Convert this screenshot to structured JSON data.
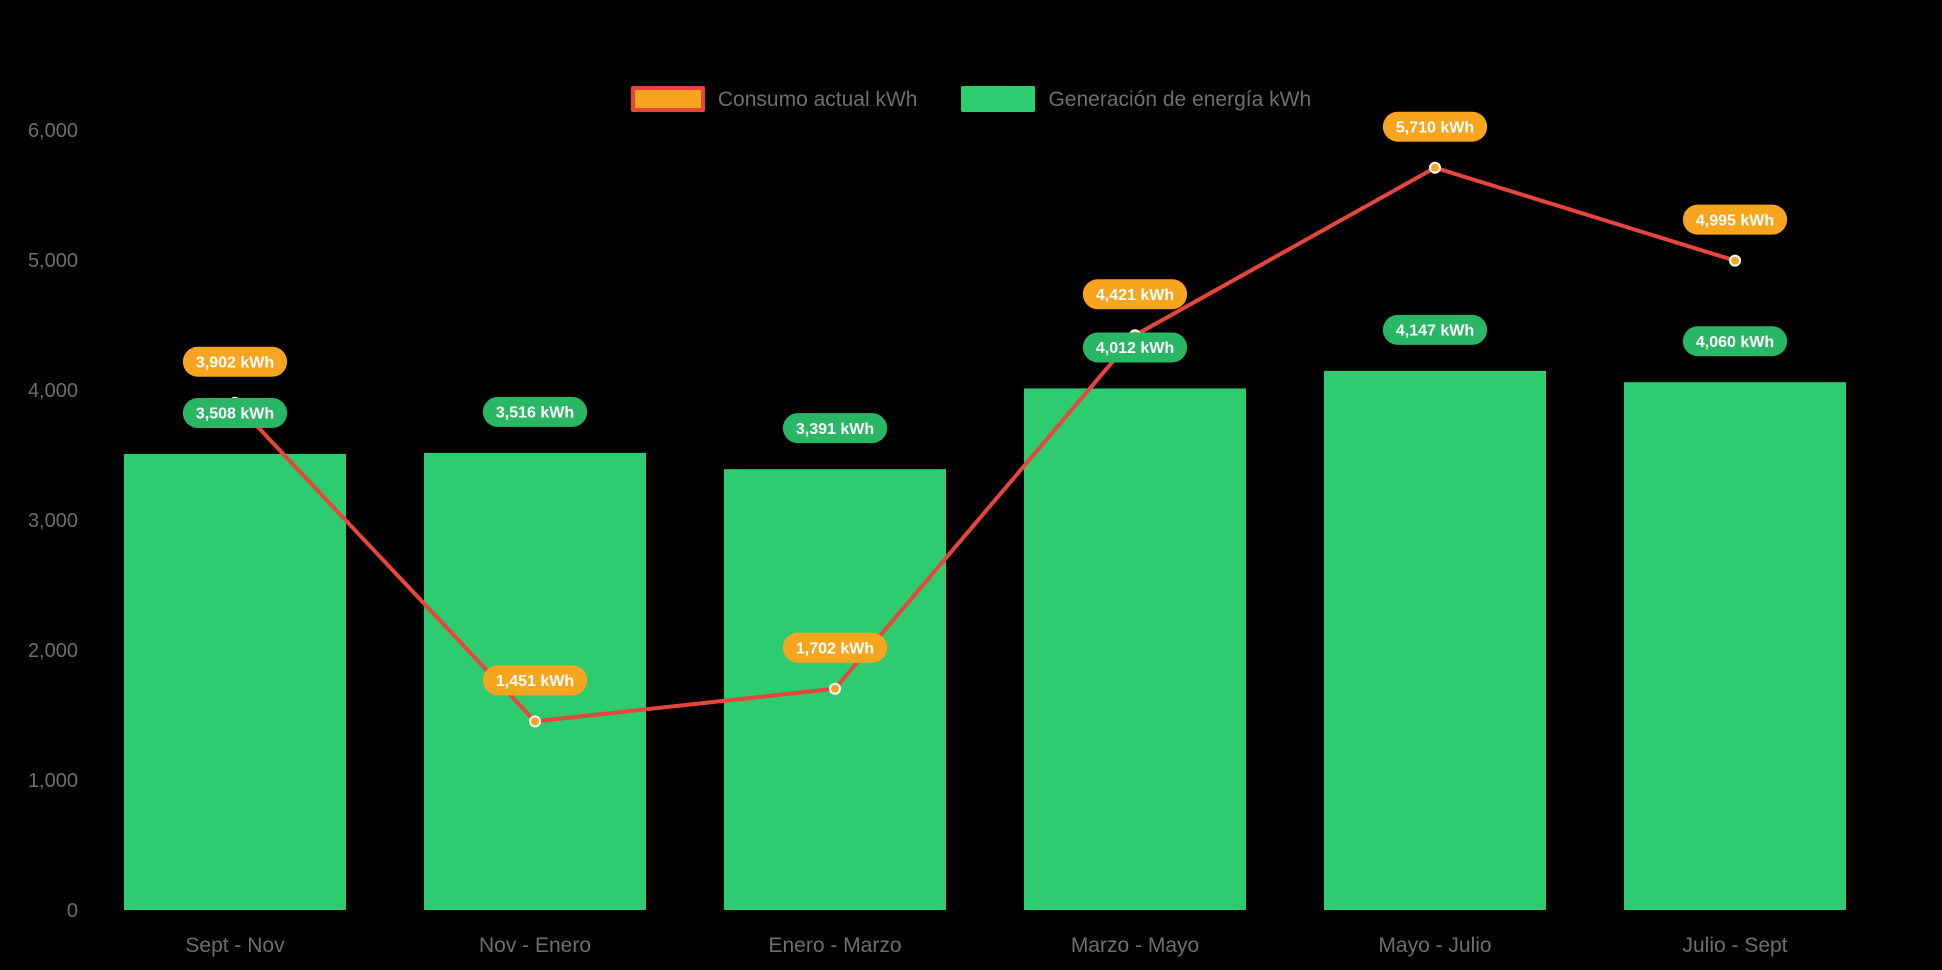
{
  "colors": {
    "background": "#000000",
    "axis_text": "#6e6e6e",
    "data_label_text": "#ffffff"
  },
  "chart_data": {
    "type": "bar+line",
    "title": "",
    "categories": [
      "Sept - Nov",
      "Nov - Enero",
      "Enero - Marzo",
      "Marzo - Mayo",
      "Mayo - Julio",
      "Julio - Sept"
    ],
    "series": [
      {
        "name": "Consumo actual kWh",
        "type": "line",
        "color": "#e8453c",
        "marker_color": "#f7a51f",
        "label_bg": "#f7a51f",
        "values": [
          3902,
          1451,
          1702,
          4421,
          5710,
          4995
        ],
        "labels": [
          "3,902 kWh",
          "1,451 kWh",
          "1,702 kWh",
          "4,421 kWh",
          "5,710 kWh",
          "4,995 kWh"
        ]
      },
      {
        "name": "Generación de energía kWh",
        "type": "bar",
        "color": "#2ecc71",
        "label_bg": "#29b765",
        "values": [
          3508,
          3516,
          3391,
          4012,
          4147,
          4060
        ],
        "labels": [
          "3,508 kWh",
          "3,516 kWh",
          "3,391 kWh",
          "4,012 kWh",
          "4,147 kWh",
          "4,060 kWh"
        ]
      }
    ],
    "ylim": [
      0,
      6000
    ],
    "yticks": [
      {
        "value": 0,
        "label": "0"
      },
      {
        "value": 1000,
        "label": "1,000"
      },
      {
        "value": 2000,
        "label": "2,000"
      },
      {
        "value": 3000,
        "label": "3,000"
      },
      {
        "value": 4000,
        "label": "4,000"
      },
      {
        "value": 5000,
        "label": "5,000"
      },
      {
        "value": 6000,
        "label": "6,000"
      }
    ],
    "grid": false,
    "legend_position": "top"
  }
}
